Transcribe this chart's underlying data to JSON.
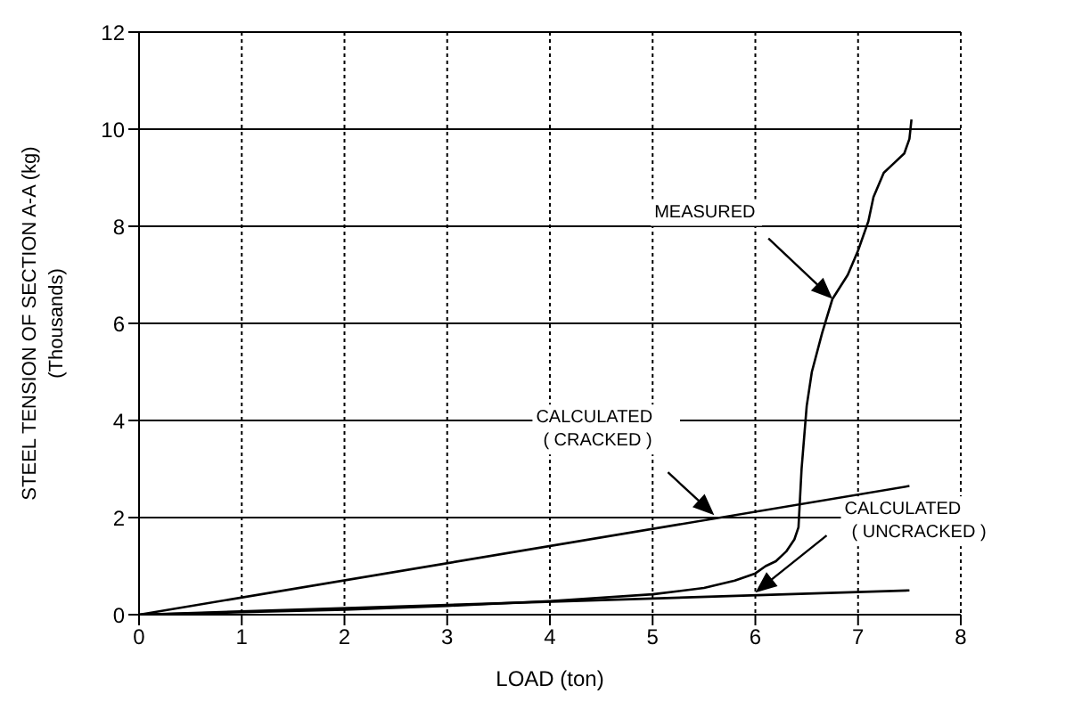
{
  "chart_data": {
    "type": "line",
    "xlabel": "LOAD (ton)",
    "ylabel": "STEEL TENSION OF SECTION A-A (kg)\n(Thousands)",
    "series": [
      {
        "color": "#000000",
        "x": [
          0,
          1,
          2,
          3,
          4,
          5,
          5.5,
          5.8,
          6,
          6.1,
          6.2,
          6.3,
          6.38,
          6.42,
          6.45,
          6.5,
          6.55,
          6.65,
          6.75,
          6.9,
          7,
          7.1,
          7.15,
          7.25,
          7.35,
          7.45,
          7.5,
          7.52
        ],
        "values": [
          0,
          0.05,
          0.1,
          0.18,
          0.28,
          0.42,
          0.55,
          0.7,
          0.85,
          1.0,
          1.1,
          1.3,
          1.55,
          1.8,
          3.0,
          4.3,
          5.0,
          5.8,
          6.5,
          7.0,
          7.5,
          8.1,
          8.6,
          9.1,
          9.3,
          9.5,
          9.8,
          10.2
        ]
      },
      {
        "color": "#000000",
        "x": [
          0,
          7.5
        ],
        "values": [
          0,
          2.65
        ]
      },
      {
        "color": "#000000",
        "x": [
          0,
          7.5
        ],
        "values": [
          0,
          0.5
        ]
      }
    ],
    "xlim": [
      0,
      8
    ],
    "xticks": [
      0,
      1,
      2,
      3,
      4,
      5,
      6,
      7,
      8
    ],
    "ylim": [
      0,
      12
    ],
    "yticks": [
      0,
      2,
      4,
      6,
      8,
      10,
      12
    ],
    "grid": true,
    "marker": "none",
    "line_style": "solid",
    "annotations": [
      "MEASURED",
      "CALCULATED\n( CRACKED )",
      "CALCULATED\n( UNCRACKED )"
    ]
  }
}
